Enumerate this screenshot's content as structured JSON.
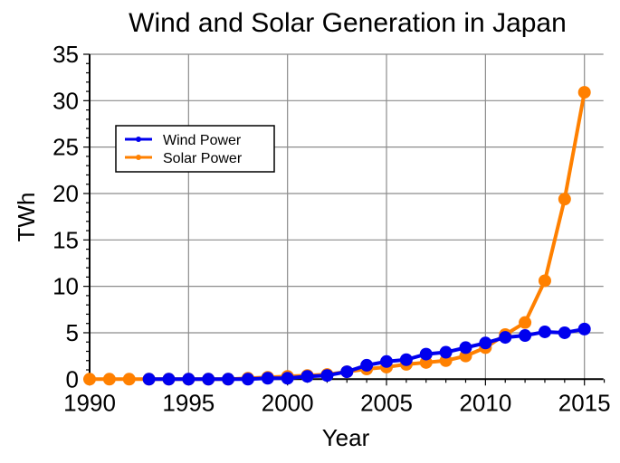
{
  "chart_data": {
    "type": "line",
    "title": "Wind and Solar Generation in Japan",
    "xlabel": "Year",
    "ylabel": "TWh",
    "xlim": [
      1990,
      2016
    ],
    "ylim": [
      0,
      35
    ],
    "xticks": [
      1990,
      1995,
      2000,
      2005,
      2010,
      2015
    ],
    "xtick_labels": [
      "1990",
      "1995",
      "2000",
      "2005",
      "2010",
      "2015"
    ],
    "yticks": [
      0,
      5,
      10,
      15,
      20,
      25,
      30,
      35
    ],
    "ytick_labels": [
      "0",
      "5",
      "10",
      "15",
      "20",
      "25",
      "30",
      "35"
    ],
    "grid": true,
    "legend_position": "upper-left",
    "series": [
      {
        "name": "Wind Power",
        "color": "#0000ee",
        "x": [
          1993,
          1994,
          1995,
          1996,
          1997,
          1998,
          1999,
          2000,
          2001,
          2002,
          2003,
          2004,
          2005,
          2006,
          2007,
          2008,
          2009,
          2010,
          2011,
          2012,
          2013,
          2014,
          2015
        ],
        "values": [
          0,
          0,
          0,
          0,
          0,
          0,
          0.1,
          0.1,
          0.3,
          0.4,
          0.8,
          1.5,
          1.9,
          2.1,
          2.7,
          2.9,
          3.4,
          3.9,
          4.5,
          4.7,
          5.1,
          5.0,
          5.4
        ]
      },
      {
        "name": "Solar Power",
        "color": "#ff8000",
        "x": [
          1990,
          1991,
          1992,
          1993,
          1994,
          1995,
          1996,
          1997,
          1998,
          1999,
          2000,
          2001,
          2002,
          2003,
          2004,
          2005,
          2006,
          2007,
          2008,
          2009,
          2010,
          2011,
          2012,
          2013,
          2014,
          2015
        ],
        "values": [
          0,
          0,
          0,
          0,
          0,
          0,
          0,
          0,
          0.1,
          0.2,
          0.3,
          0.4,
          0.5,
          0.8,
          1.1,
          1.3,
          1.6,
          1.8,
          2.0,
          2.5,
          3.4,
          4.8,
          6.1,
          10.6,
          19.4,
          30.9
        ]
      }
    ]
  }
}
